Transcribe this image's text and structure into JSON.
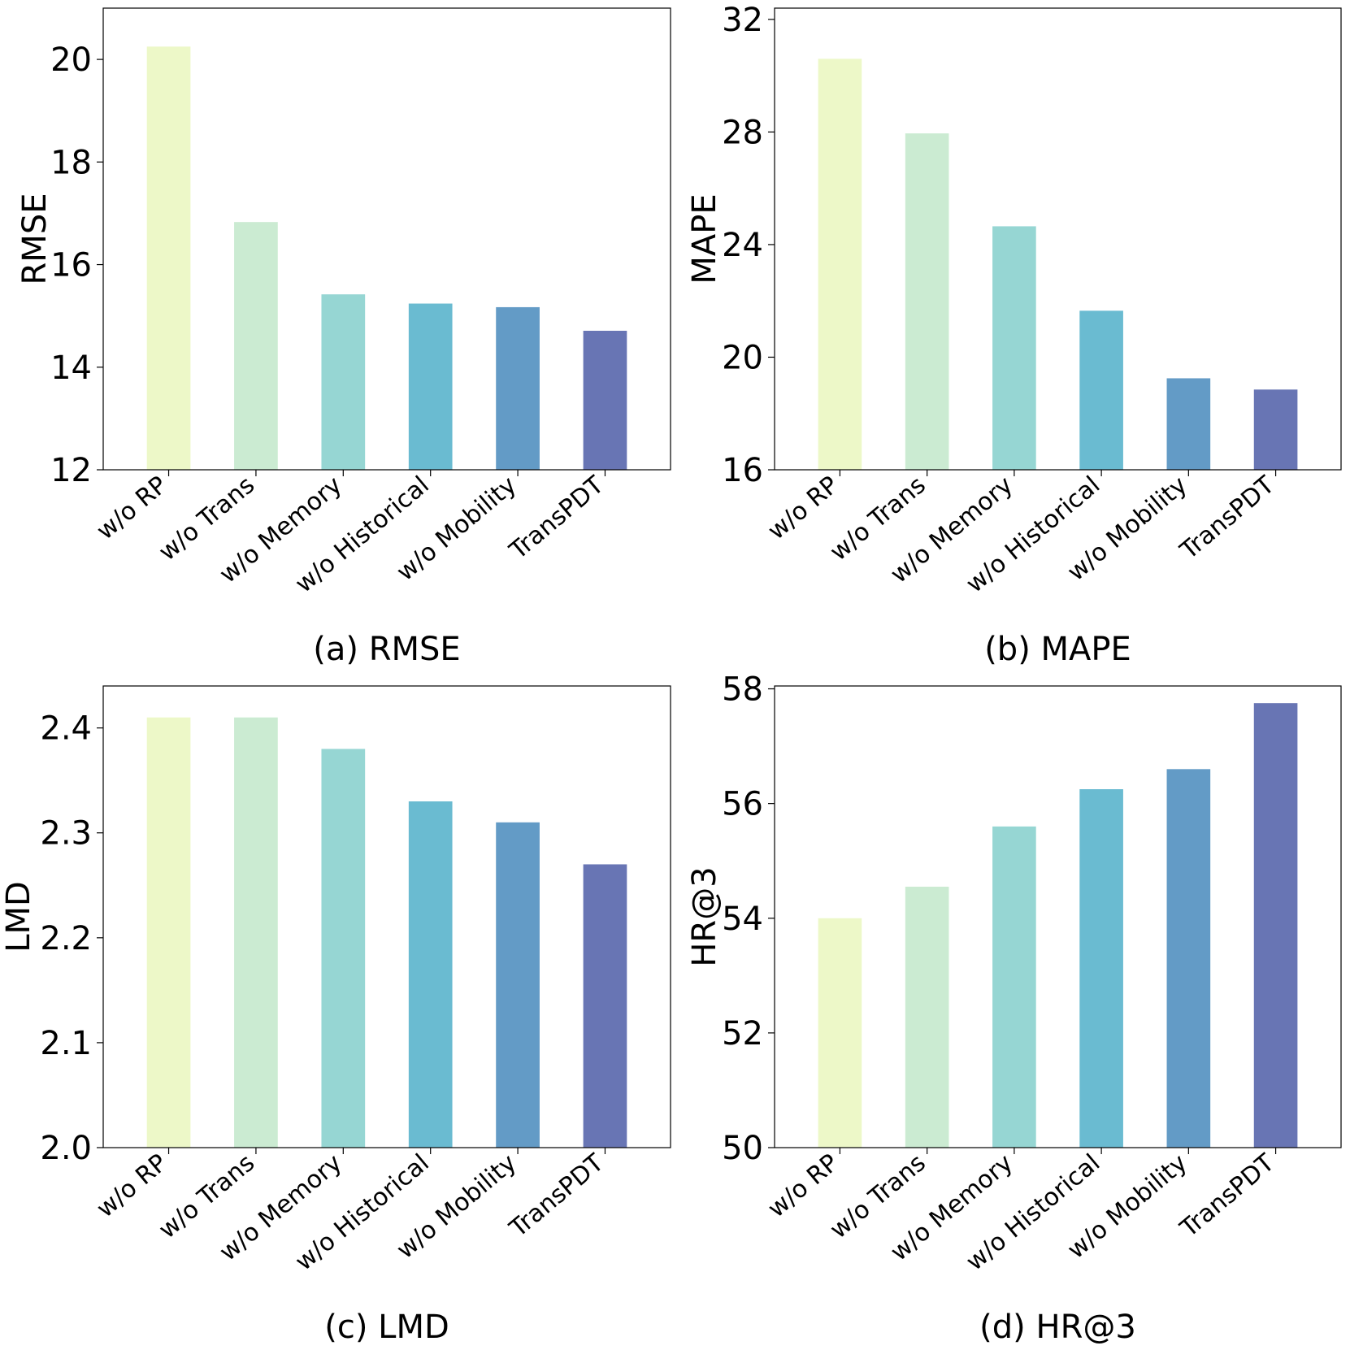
{
  "colors": [
    "#edf8c8",
    "#cbebd2",
    "#96d6d3",
    "#6abbd1",
    "#639bc6",
    "#6875b4"
  ],
  "categories": [
    "w/o RP",
    "w/o Trans",
    "w/o Memory",
    "w/o Historical",
    "w/o Mobility",
    "TransPDT"
  ],
  "chart_data": [
    {
      "type": "bar",
      "caption": "(a) RMSE",
      "ylabel": "RMSE",
      "categories": [
        "w/o RP",
        "w/o Trans",
        "w/o Memory",
        "w/o Historical",
        "w/o Mobility",
        "TransPDT"
      ],
      "values": [
        20.25,
        16.83,
        15.42,
        15.24,
        15.17,
        14.71
      ],
      "ylim": [
        12,
        21
      ],
      "yticks": [
        12,
        14,
        16,
        18,
        20
      ],
      "ytick_labels": [
        "12",
        "14",
        "16",
        "18",
        "20"
      ]
    },
    {
      "type": "bar",
      "caption": "(b) MAPE",
      "ylabel": "MAPE",
      "categories": [
        "w/o RP",
        "w/o Trans",
        "w/o Memory",
        "w/o Historical",
        "w/o Mobility",
        "TransPDT"
      ],
      "values": [
        30.6,
        27.95,
        24.65,
        21.65,
        19.25,
        18.85
      ],
      "ylim": [
        16,
        32.4
      ],
      "yticks": [
        16,
        20,
        24,
        28,
        32
      ],
      "ytick_labels": [
        "16",
        "20",
        "24",
        "28",
        "32"
      ]
    },
    {
      "type": "bar",
      "caption": "(c) LMD",
      "ylabel": "LMD",
      "categories": [
        "w/o RP",
        "w/o Trans",
        "w/o Memory",
        "w/o Historical",
        "w/o Mobility",
        "TransPDT"
      ],
      "values": [
        2.41,
        2.41,
        2.38,
        2.33,
        2.31,
        2.27
      ],
      "ylim": [
        2.0,
        2.44
      ],
      "yticks": [
        2.0,
        2.1,
        2.2,
        2.3,
        2.4
      ],
      "ytick_labels": [
        "2.0",
        "2.1",
        "2.2",
        "2.3",
        "2.4"
      ]
    },
    {
      "type": "bar",
      "caption": "(d) HR@3",
      "ylabel": "HR@3",
      "categories": [
        "w/o RP",
        "w/o Trans",
        "w/o Memory",
        "w/o Historical",
        "w/o Mobility",
        "TransPDT"
      ],
      "values": [
        54.0,
        54.55,
        55.6,
        56.25,
        56.6,
        57.75
      ],
      "ylim": [
        50,
        58.05
      ],
      "yticks": [
        50,
        52,
        54,
        56,
        58
      ],
      "ytick_labels": [
        "50",
        "52",
        "54",
        "56",
        "58"
      ]
    }
  ]
}
